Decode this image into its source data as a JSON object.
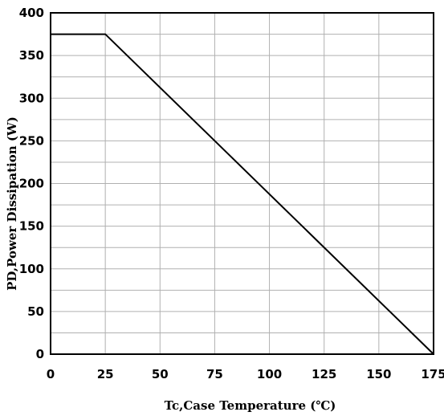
{
  "chart_data": {
    "type": "line",
    "title": "",
    "xlabel": "Tc,Case Temperature (℃)",
    "ylabel": "PD,Power Dissipation (W)",
    "xlim": [
      0,
      175
    ],
    "ylim": [
      0,
      400
    ],
    "x_ticks": [
      0,
      25,
      50,
      75,
      100,
      125,
      150,
      175
    ],
    "y_ticks": [
      0,
      50,
      100,
      150,
      200,
      250,
      300,
      350,
      400
    ],
    "x_tick_labels": [
      "0",
      "25",
      "50",
      "75",
      "100",
      "125",
      "150",
      "175"
    ],
    "y_tick_labels": [
      "0",
      "50",
      "100",
      "150",
      "200",
      "250",
      "300",
      "350",
      "400"
    ],
    "x_grid": [
      0,
      25,
      50,
      75,
      100,
      125,
      150,
      175
    ],
    "y_grid": [
      0,
      25,
      50,
      75,
      100,
      125,
      150,
      175,
      200,
      225,
      250,
      275,
      300,
      325,
      350,
      375,
      400
    ],
    "grid": true,
    "series": [
      {
        "x": [
          0,
          25,
          175
        ],
        "y": [
          375,
          375,
          0
        ]
      }
    ],
    "colors": {
      "line": "#000000",
      "grid": "#b0b0b0",
      "frame": "#000000"
    }
  }
}
